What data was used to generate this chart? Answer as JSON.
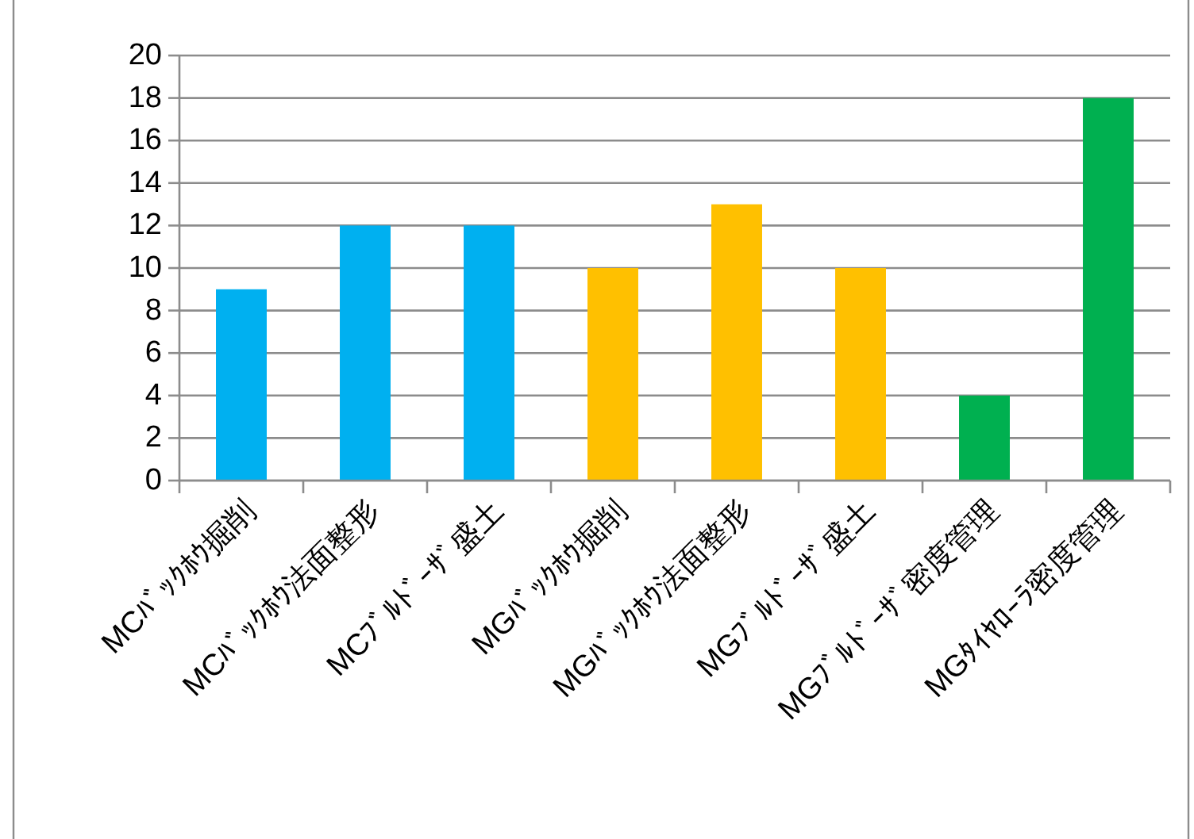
{
  "chart_data": {
    "type": "bar",
    "categories": [
      "MCﾊﾞｯｸﾎｳ掘削",
      "MCﾊﾞｯｸﾎｳ法面整形",
      "MCﾌﾞﾙﾄﾞｰｻﾞ盛土",
      "MGﾊﾞｯｸﾎｳ掘削",
      "MGﾊﾞｯｸﾎｳ法面整形",
      "MGﾌﾞﾙﾄﾞｰｻﾞ盛土",
      "MGﾌﾞﾙﾄﾞｰｻﾞ密度管理",
      "MGﾀｲﾔﾛｰﾗ密度管理"
    ],
    "values": [
      9,
      12,
      12,
      10,
      13,
      10,
      4,
      18
    ],
    "colors": [
      "#00b0f0",
      "#00b0f0",
      "#00b0f0",
      "#ffc000",
      "#ffc000",
      "#ffc000",
      "#00b050",
      "#00b050"
    ],
    "ylim": [
      0,
      20
    ],
    "yticks": [
      0,
      2,
      4,
      6,
      8,
      10,
      12,
      14,
      16,
      18,
      20
    ],
    "grid": "y"
  }
}
